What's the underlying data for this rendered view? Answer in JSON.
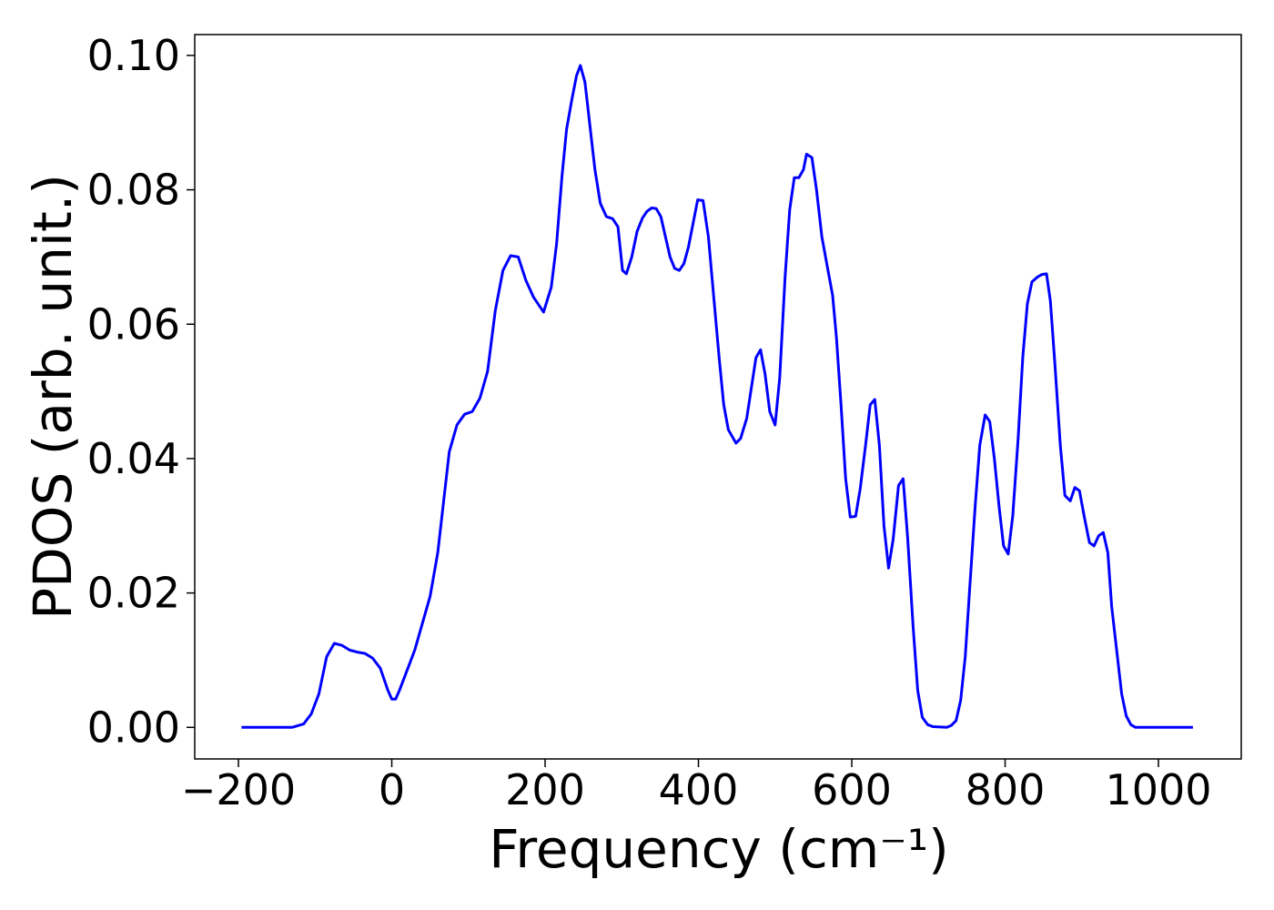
{
  "chart_data": {
    "type": "line",
    "xlabel": "Frequency (cm⁻¹)",
    "ylabel": "PDOS (arb. unit.)",
    "xlim": [
      -257,
      1108
    ],
    "ylim": [
      -0.0047,
      0.1031
    ],
    "xticks": [
      {
        "value": -200,
        "label": "−200"
      },
      0,
      200,
      400,
      600,
      800,
      1000
    ],
    "yticks": [
      {
        "value": 0,
        "label": "0.00"
      },
      {
        "value": 0.02,
        "label": "0.02"
      },
      {
        "value": 0.04,
        "label": "0.04"
      },
      {
        "value": 0.06,
        "label": "0.06"
      },
      {
        "value": 0.08,
        "label": "0.08"
      },
      {
        "value": 0.1,
        "label": "0.10"
      }
    ],
    "grid": false,
    "series": [
      {
        "color": "#0000ff",
        "x": [
          -196,
          -130,
          -115,
          -105,
          -95,
          -85,
          -75,
          -65,
          -55,
          -45,
          -35,
          -25,
          -15,
          -5,
          0,
          5,
          10,
          20,
          30,
          40,
          50,
          60,
          70,
          75,
          85,
          95,
          105,
          115,
          125,
          135,
          145,
          155,
          165,
          175,
          185,
          198,
          208,
          215,
          222,
          228,
          235,
          241,
          246,
          252,
          258,
          265,
          272,
          280,
          288,
          295,
          301,
          306,
          313,
          320,
          327,
          333,
          339,
          345,
          351,
          357,
          363,
          369,
          375,
          381,
          387,
          393,
          399,
          406,
          413,
          427,
          433,
          439,
          449,
          455,
          463,
          475,
          481,
          487,
          493,
          500,
          506,
          513,
          519,
          525,
          531,
          537,
          541,
          548,
          554,
          561,
          569,
          575,
          580,
          586,
          592,
          598,
          605,
          611,
          618,
          624,
          630,
          636,
          642,
          648,
          654,
          661,
          667,
          673,
          680,
          686,
          692,
          699,
          706,
          724,
          730,
          736,
          742,
          748,
          754,
          761,
          767,
          774,
          780,
          786,
          792,
          798,
          804,
          810,
          817,
          823,
          829,
          835,
          842,
          848,
          854,
          859,
          865,
          872,
          878,
          885,
          891,
          897,
          903,
          910,
          916,
          922,
          928,
          934,
          939,
          946,
          952,
          958,
          964,
          970,
          1045
        ],
        "values": [
          0,
          0,
          0.0005,
          0.002,
          0.005,
          0.0105,
          0.0125,
          0.0122,
          0.0115,
          0.0112,
          0.011,
          0.0103,
          0.0088,
          0.0055,
          0.0042,
          0.0042,
          0.0055,
          0.0085,
          0.0115,
          0.0155,
          0.0195,
          0.026,
          0.036,
          0.041,
          0.045,
          0.0466,
          0.047,
          0.049,
          0.053,
          0.062,
          0.068,
          0.0702,
          0.07,
          0.0665,
          0.064,
          0.0618,
          0.0655,
          0.072,
          0.082,
          0.089,
          0.0935,
          0.097,
          0.0985,
          0.096,
          0.09,
          0.083,
          0.078,
          0.076,
          0.0757,
          0.0745,
          0.068,
          0.0675,
          0.07,
          0.0738,
          0.0758,
          0.0768,
          0.0773,
          0.0772,
          0.076,
          0.073,
          0.07,
          0.0683,
          0.068,
          0.069,
          0.0715,
          0.075,
          0.0785,
          0.0784,
          0.073,
          0.055,
          0.048,
          0.0443,
          0.0423,
          0.043,
          0.046,
          0.055,
          0.0562,
          0.0525,
          0.047,
          0.045,
          0.052,
          0.067,
          0.077,
          0.0818,
          0.0818,
          0.083,
          0.0853,
          0.0848,
          0.08,
          0.073,
          0.068,
          0.0643,
          0.058,
          0.048,
          0.037,
          0.0313,
          0.0314,
          0.0355,
          0.042,
          0.048,
          0.0488,
          0.042,
          0.03,
          0.0237,
          0.028,
          0.036,
          0.037,
          0.028,
          0.015,
          0.0055,
          0.0015,
          0.0004,
          0.0001,
          0,
          0.0003,
          0.001,
          0.004,
          0.0105,
          0.021,
          0.033,
          0.042,
          0.0465,
          0.0455,
          0.04,
          0.033,
          0.027,
          0.0258,
          0.0315,
          0.043,
          0.055,
          0.063,
          0.0663,
          0.067,
          0.0674,
          0.0675,
          0.0635,
          0.054,
          0.042,
          0.0345,
          0.0337,
          0.0357,
          0.0352,
          0.0315,
          0.0275,
          0.027,
          0.0285,
          0.029,
          0.026,
          0.018,
          0.011,
          0.005,
          0.0017,
          0.0004,
          0,
          0
        ]
      }
    ]
  }
}
